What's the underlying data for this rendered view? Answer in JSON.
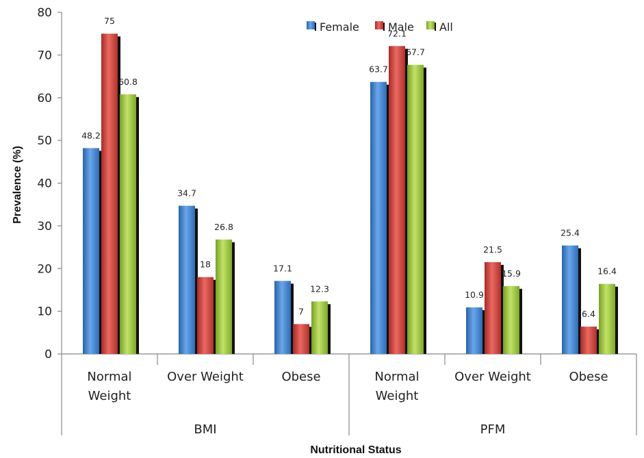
{
  "chart_data": {
    "type": "bar",
    "xlabel": "Nutritional Status",
    "ylabel": "Prevalence (%)",
    "ylim": [
      0,
      80
    ],
    "yticks": [
      0,
      10,
      20,
      30,
      40,
      50,
      60,
      70,
      80
    ],
    "grid": false,
    "legend_position": "top-right",
    "groups": [
      {
        "label": "BMI",
        "categories": [
          "Normal Weight",
          "Over Weight",
          "Obese"
        ]
      },
      {
        "label": "PFM",
        "categories": [
          "Normal Weight",
          "Over Weight",
          "Obese"
        ]
      }
    ],
    "categories": [
      "Normal Weight",
      "Over Weight",
      "Obese",
      "Normal Weight",
      "Over Weight",
      "Obese"
    ],
    "category_lines": [
      [
        "Normal",
        "Weight"
      ],
      [
        "Over Weight"
      ],
      [
        "Obese"
      ],
      [
        "Normal",
        "Weight"
      ],
      [
        "Over Weight"
      ],
      [
        "Obese"
      ]
    ],
    "series": [
      {
        "name": "Female",
        "color": "#3f82cf",
        "values": [
          48.2,
          34.7,
          17.1,
          63.7,
          10.9,
          25.4
        ],
        "labels": [
          "48.2",
          "34.7",
          "17.1",
          "63.7",
          "10.9",
          "25.4"
        ]
      },
      {
        "name": "Male",
        "color": "#d1403a",
        "values": [
          75,
          18,
          7,
          72.1,
          21.5,
          6.4
        ],
        "labels": [
          "75",
          "18",
          "7",
          "72.1",
          "21.5",
          "6.4"
        ]
      },
      {
        "name": "All",
        "color": "#9cc63a",
        "values": [
          60.8,
          26.8,
          12.3,
          67.7,
          15.9,
          16.4
        ],
        "labels": [
          "60.8",
          "26.8",
          "12.3",
          "67.7",
          "15.9",
          "16.4"
        ]
      }
    ]
  }
}
